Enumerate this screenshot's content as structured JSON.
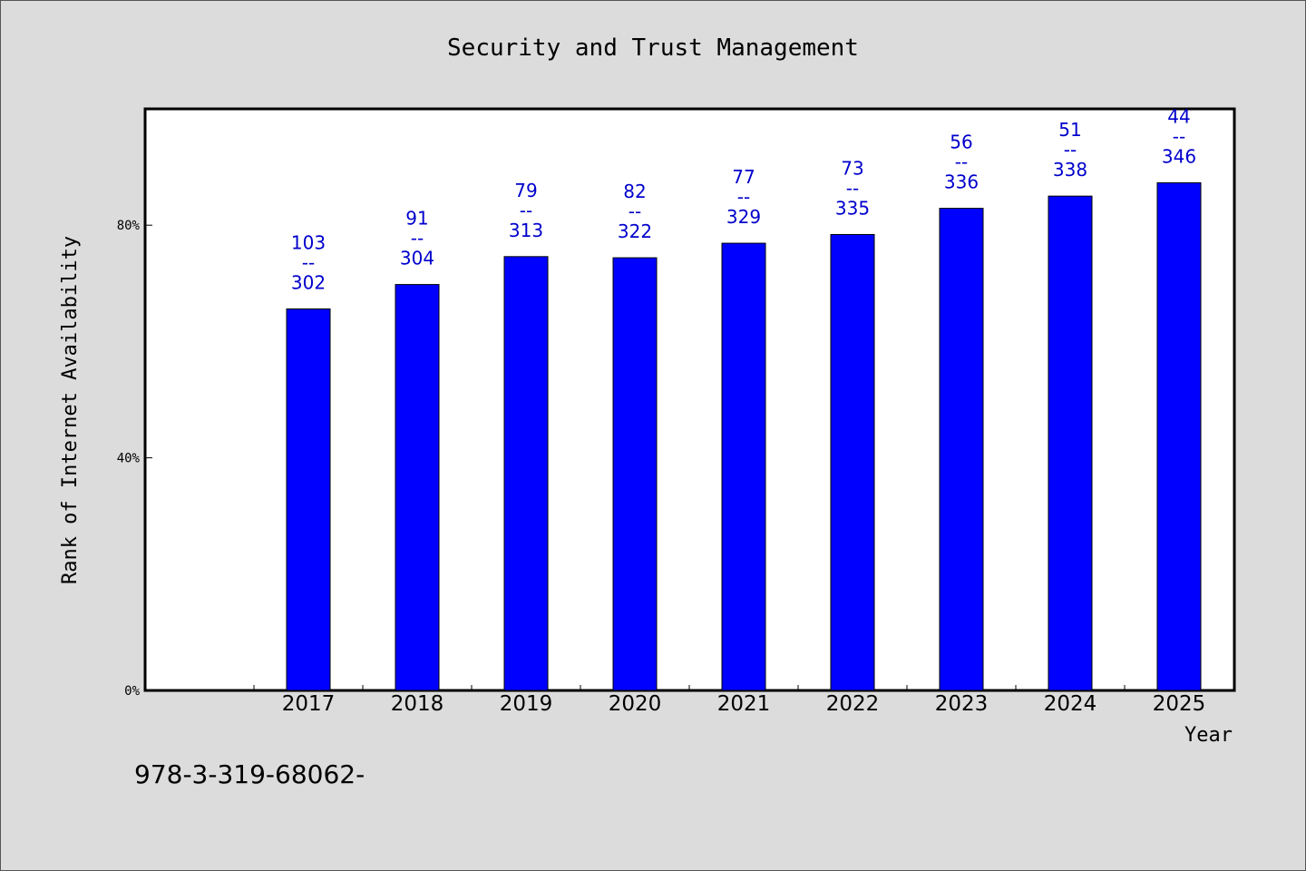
{
  "chart_data": {
    "type": "bar",
    "title": "Security and Trust Management",
    "xlabel": "Year",
    "ylabel": "Rank of Internet Availability",
    "categories": [
      "2017",
      "2018",
      "2019",
      "2020",
      "2021",
      "2022",
      "2023",
      "2024",
      "2025"
    ],
    "values": [
      65.6,
      69.8,
      74.6,
      74.4,
      76.9,
      78.4,
      82.9,
      85.0,
      87.3
    ],
    "ylim": [
      0,
      100
    ],
    "yticks": [
      0,
      40,
      80
    ],
    "ytick_labels": [
      "0%",
      "40%",
      "80%"
    ],
    "data_labels": [
      {
        "top": "103",
        "sep": "--",
        "bottom": "302"
      },
      {
        "top": "91",
        "sep": "--",
        "bottom": "304"
      },
      {
        "top": "79",
        "sep": "--",
        "bottom": "313"
      },
      {
        "top": "82",
        "sep": "--",
        "bottom": "322"
      },
      {
        "top": "77",
        "sep": "--",
        "bottom": "329"
      },
      {
        "top": "73",
        "sep": "--",
        "bottom": "335"
      },
      {
        "top": "56",
        "sep": "--",
        "bottom": "336"
      },
      {
        "top": "51",
        "sep": "--",
        "bottom": "338"
      },
      {
        "top": "44",
        "sep": "--",
        "bottom": "346"
      }
    ],
    "grid": false,
    "bar_color": "#0000ff",
    "label_color": "#0000cc"
  },
  "footer": {
    "isbn": "978-3-319-68062-"
  }
}
